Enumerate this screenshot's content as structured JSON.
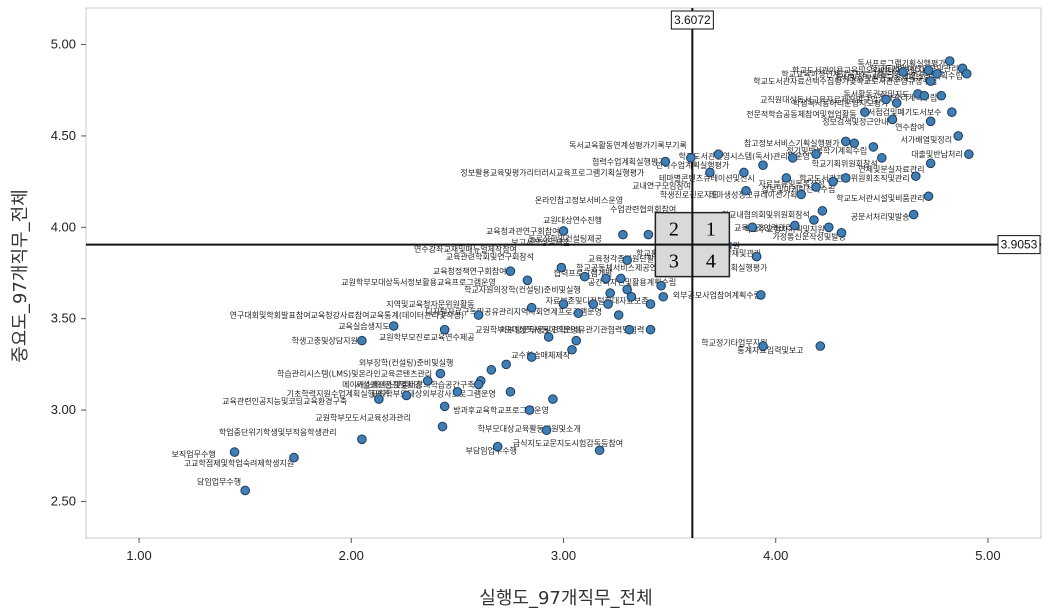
{
  "chart_data": {
    "type": "scatter",
    "title": "",
    "xlabel": "실행도_97개직무_전체",
    "ylabel": "중요도_97개직무_전체",
    "xlim": [
      0.75,
      5.25
    ],
    "ylim": [
      2.3,
      5.2
    ],
    "x_ticks": [
      "1.00",
      "2.00",
      "3.00",
      "4.00",
      "5.00"
    ],
    "x_tick_values": [
      1,
      2,
      3,
      4,
      5
    ],
    "y_ticks": [
      "2.50",
      "3.00",
      "3.50",
      "4.00",
      "4.50",
      "5.00"
    ],
    "y_tick_values": [
      2.5,
      3,
      3.5,
      4,
      4.5,
      5
    ],
    "grid": false,
    "point_color": "#3f7fb5",
    "reference_lines": {
      "x": 3.6072,
      "x_label": "3.6072",
      "y": 3.9053,
      "y_label": "3.9053"
    },
    "quadrants": [
      "1",
      "2",
      "3",
      "4"
    ],
    "points": [
      {
        "x": 4.82,
        "y": 4.9,
        "label": "독서프로그램기획실행평가"
      },
      {
        "x": 4.88,
        "y": 4.87,
        "label": "학교도서관예산요구및관리"
      },
      {
        "x": 4.9,
        "y": 4.83,
        "label": "연간운영계획수립"
      },
      {
        "x": 4.72,
        "y": 4.86,
        "label": "학교도서관이용교육및오리엔테이션실시"
      },
      {
        "x": 4.75,
        "y": 4.82,
        "label": "독서및정보활용교육계획수립"
      },
      {
        "x": 4.6,
        "y": 4.84,
        "label": "학교교육과정연계교육프로그램운영"
      },
      {
        "x": 4.78,
        "y": 4.8,
        "label": "학교도서관자료선택수집평가및학교도서관운영규정수립"
      },
      {
        "x": 4.65,
        "y": 4.73,
        "label": "독서활동권장및지도"
      },
      {
        "x": 4.78,
        "y": 4.71,
        "label": "장서관리계획수립"
      },
      {
        "x": 4.5,
        "y": 4.7,
        "label": "교직원대상독서교육자료제작및구입"
      },
      {
        "x": 4.55,
        "y": 4.68,
        "label": "학생독서동아리운영지도평가"
      },
      {
        "x": 4.8,
        "y": 4.63,
        "label": "장서점검및폐기도서보수"
      },
      {
        "x": 4.4,
        "y": 4.62,
        "label": "전문적학습공동체참여및협업활동"
      },
      {
        "x": 4.55,
        "y": 4.58,
        "label": "정보검색및정근안내"
      },
      {
        "x": 4.72,
        "y": 4.55,
        "label": "연수참여"
      },
      {
        "x": 4.85,
        "y": 4.48,
        "label": "서가배열및정리"
      },
      {
        "x": 3.6,
        "y": 4.45,
        "label": "독서교육활동연계성평가기록부기록"
      },
      {
        "x": 4.32,
        "y": 4.46,
        "label": "참고정보서비스기획실행평가"
      },
      {
        "x": 4.45,
        "y": 4.42,
        "label": "정기및반복학기계획수립"
      },
      {
        "x": 4.9,
        "y": 4.4,
        "label": "대출및반납처리"
      },
      {
        "x": 4.18,
        "y": 4.39,
        "label": "학교도서관운영시스템(독서)관리및운영"
      },
      {
        "x": 3.5,
        "y": 4.36,
        "label": "협력수업계획실행평가"
      },
      {
        "x": 3.8,
        "y": 4.34,
        "label": "단독수업계획실행평가"
      },
      {
        "x": 4.5,
        "y": 4.35,
        "label": "학교기획위원회참석"
      },
      {
        "x": 4.72,
        "y": 4.32,
        "label": "연체및분실자료관리"
      },
      {
        "x": 3.4,
        "y": 4.3,
        "label": "정보활용교육및평가리터러시교육프로그램기획실행평가"
      },
      {
        "x": 3.92,
        "y": 4.27,
        "label": "테마별콘텐츠큐레이션및전시"
      },
      {
        "x": 4.65,
        "y": 4.27,
        "label": "학교도서관관련위원회조직및관리"
      },
      {
        "x": 4.25,
        "y": 4.24,
        "label": "자료분류및목록작성"
      },
      {
        "x": 3.62,
        "y": 4.23,
        "label": "교내연구모임참여"
      },
      {
        "x": 4.3,
        "y": 4.21,
        "label": "정보및마케팅전략수립"
      },
      {
        "x": 3.75,
        "y": 4.18,
        "label": "학생진로진로지도"
      },
      {
        "x": 4.12,
        "y": 4.18,
        "label": "테마생성정보큐레이션기획"
      },
      {
        "x": 4.72,
        "y": 4.16,
        "label": "학교도서관시설및비품관리"
      },
      {
        "x": 3.3,
        "y": 4.15,
        "label": "온라인참고정보서비스운영"
      },
      {
        "x": 3.55,
        "y": 4.1,
        "label": "수업관련협의회참여"
      },
      {
        "x": 4.18,
        "y": 4.07,
        "label": "학교내협의회및위원회참석"
      },
      {
        "x": 4.65,
        "y": 4.06,
        "label": "공문서처리및발송"
      },
      {
        "x": 3.2,
        "y": 4.04,
        "label": "교원대상연수진행"
      },
      {
        "x": 3.72,
        "y": 4.01,
        "label": "시청각자료관리"
      },
      {
        "x": 4.1,
        "y": 4.0,
        "label": "교육보조인력관리"
      },
      {
        "x": 4.25,
        "y": 3.99,
        "label": "학교주요행사기획및지원"
      },
      {
        "x": 3.0,
        "y": 3.98,
        "label": "교육청과관연구회참여"
      },
      {
        "x": 3.68,
        "y": 3.96,
        "label": "자료이용교육"
      },
      {
        "x": 4.35,
        "y": 3.95,
        "label": "가정통신문작성및발송"
      },
      {
        "x": 3.2,
        "y": 3.94,
        "label": "동료장학및컨설팅제공"
      },
      {
        "x": 3.05,
        "y": 3.92,
        "label": "보고서작성및제출"
      },
      {
        "x": 3.85,
        "y": 3.9,
        "label": "창의적체험활동지원"
      },
      {
        "x": 2.8,
        "y": 3.88,
        "label": "연수강좌교재및매뉴얼제작참여"
      },
      {
        "x": 3.95,
        "y": 3.86,
        "label": "학교홈페이지독서교육내용탑재및관리"
      },
      {
        "x": 2.88,
        "y": 3.84,
        "label": "교육관련학회및연구회참석"
      },
      {
        "x": 3.55,
        "y": 3.83,
        "label": "교육청각종지원단활동참여"
      },
      {
        "x": 3.98,
        "y": 3.78,
        "label": "학교공동체서비스제공연구학교및교육과사업계획실행평가"
      },
      {
        "x": 2.75,
        "y": 3.76,
        "label": "교육청정책연구회참여"
      },
      {
        "x": 3.25,
        "y": 3.75,
        "label": "협력프로그램개발"
      },
      {
        "x": 3.55,
        "y": 3.7,
        "label": "공간디자인및활용계획수립"
      },
      {
        "x": 2.7,
        "y": 3.7,
        "label": "교원학부모대상독서정보활용교육프로그램운영"
      },
      {
        "x": 3.1,
        "y": 3.66,
        "label": "학교자원의장학(컨설팅)준비및실행"
      },
      {
        "x": 3.95,
        "y": 3.63,
        "label": "외부공모사업참여계획수립"
      },
      {
        "x": 3.42,
        "y": 3.6,
        "label": "자료보존및디지털화대자료보존"
      },
      {
        "x": 2.6,
        "y": 3.58,
        "label": "지역및교육청자문위원활동"
      },
      {
        "x": 3.2,
        "y": 3.54,
        "label": "디지털자료구독및공유관리지역사회연계프로그램운영"
      },
      {
        "x": 2.55,
        "y": 3.52,
        "label": "연구대회및학회발표참여교육청강사료참여교육통계(데이터관리및작성)"
      },
      {
        "x": 2.2,
        "y": 3.46,
        "label": "교육실습생지도"
      },
      {
        "x": 3.1,
        "y": 3.44,
        "label": "외부방문대응및견학안내"
      },
      {
        "x": 3.4,
        "y": 3.44,
        "label": "교원학부모대상독서동아리운영유관기관협력및협력"
      },
      {
        "x": 2.6,
        "y": 3.4,
        "label": "교원학부모진로교육연수제공"
      },
      {
        "x": 2.05,
        "y": 3.38,
        "label": "학생고충및상담지원"
      },
      {
        "x": 3.98,
        "y": 3.37,
        "label": "학교정기타업무지원"
      },
      {
        "x": 4.15,
        "y": 3.33,
        "label": "통계자료입력및보고"
      },
      {
        "x": 3.05,
        "y": 3.3,
        "label": "교수학습매체제작"
      },
      {
        "x": 2.5,
        "y": 3.26,
        "label": "외부장학(컨설팅)준비및실행"
      },
      {
        "x": 2.4,
        "y": 3.2,
        "label": "학습관리시스템(LMS)및온라인교육콘텐츠관리"
      },
      {
        "x": 2.35,
        "y": 3.14,
        "label": "시설안전점검및환경"
      },
      {
        "x": 2.6,
        "y": 3.14,
        "label": "메이커스페이스및멀티창의학습공간구축"
      },
      {
        "x": 2.2,
        "y": 3.09,
        "label": "기초학력지원수업계획실행평가"
      },
      {
        "x": 2.7,
        "y": 3.09,
        "label": "교원학부모대상외부강사프로그램운영"
      },
      {
        "x": 2.0,
        "y": 3.05,
        "label": "교육관련인공지능및코딩교육환경구축"
      },
      {
        "x": 2.95,
        "y": 3.0,
        "label": "방과후교육학교프로그램운영"
      },
      {
        "x": 2.3,
        "y": 2.96,
        "label": "교원학부모도서교육성과관리"
      },
      {
        "x": 3.1,
        "y": 2.9,
        "label": "학부모대상교육활동지원및소개"
      },
      {
        "x": 1.95,
        "y": 2.88,
        "label": "학업중단위기학생및부적응학생관리"
      },
      {
        "x": 3.3,
        "y": 2.82,
        "label": "급식지도교문지도시험감독등참여"
      },
      {
        "x": 2.8,
        "y": 2.78,
        "label": "부담임업무수행"
      },
      {
        "x": 1.38,
        "y": 2.76,
        "label": "보직업무수행"
      },
      {
        "x": 1.75,
        "y": 2.71,
        "label": "고교학점제및학업숙려제학생지원"
      },
      {
        "x": 1.5,
        "y": 2.61,
        "label": "담임업무수행"
      }
    ],
    "drawn_points": [
      [
        4.82,
        4.91
      ],
      [
        4.88,
        4.87
      ],
      [
        4.9,
        4.84
      ],
      [
        4.72,
        4.86
      ],
      [
        4.76,
        4.84
      ],
      [
        4.6,
        4.85
      ],
      [
        4.73,
        4.8
      ],
      [
        4.67,
        4.73
      ],
      [
        4.78,
        4.72
      ],
      [
        4.7,
        4.72
      ],
      [
        4.52,
        4.7
      ],
      [
        4.57,
        4.68
      ],
      [
        4.83,
        4.63
      ],
      [
        4.42,
        4.63
      ],
      [
        4.55,
        4.59
      ],
      [
        4.73,
        4.58
      ],
      [
        4.86,
        4.5
      ],
      [
        4.33,
        4.47
      ],
      [
        4.46,
        4.44
      ],
      [
        4.91,
        4.4
      ],
      [
        4.19,
        4.4
      ],
      [
        4.37,
        4.46
      ],
      [
        4.5,
        4.38
      ],
      [
        4.73,
        4.35
      ],
      [
        4.05,
        4.27
      ],
      [
        4.33,
        4.27
      ],
      [
        4.66,
        4.28
      ],
      [
        4.27,
        4.25
      ],
      [
        3.85,
        4.3
      ],
      [
        3.94,
        4.34
      ],
      [
        4.19,
        4.22
      ],
      [
        3.86,
        4.2
      ],
      [
        4.12,
        4.18
      ],
      [
        4.72,
        4.17
      ],
      [
        3.69,
        4.3
      ],
      [
        3.48,
        4.36
      ],
      [
        3.6,
        4.38
      ],
      [
        3.73,
        4.4
      ],
      [
        4.08,
        4.38
      ],
      [
        4.22,
        4.09
      ],
      [
        4.65,
        4.07
      ],
      [
        4.18,
        4.04
      ],
      [
        4.25,
        4.0
      ],
      [
        4.09,
        4.01
      ],
      [
        3.89,
        4.0
      ],
      [
        4.31,
        3.97
      ],
      [
        3.28,
        3.96
      ],
      [
        3.0,
        3.98
      ],
      [
        3.4,
        3.96
      ],
      [
        3.6,
        3.85
      ],
      [
        3.77,
        3.9
      ],
      [
        3.3,
        3.82
      ],
      [
        3.91,
        3.84
      ],
      [
        2.99,
        3.78
      ],
      [
        2.75,
        3.76
      ],
      [
        3.1,
        3.73
      ],
      [
        3.2,
        3.72
      ],
      [
        3.27,
        3.72
      ],
      [
        2.83,
        3.71
      ],
      [
        3.46,
        3.68
      ],
      [
        3.3,
        3.66
      ],
      [
        3.22,
        3.64
      ],
      [
        3.32,
        3.62
      ],
      [
        3.47,
        3.62
      ],
      [
        3.41,
        3.58
      ],
      [
        3.21,
        3.58
      ],
      [
        3.0,
        3.58
      ],
      [
        3.14,
        3.58
      ],
      [
        3.93,
        3.63
      ],
      [
        2.85,
        3.56
      ],
      [
        3.26,
        3.52
      ],
      [
        3.07,
        3.53
      ],
      [
        2.6,
        3.52
      ],
      [
        2.2,
        3.46
      ],
      [
        2.44,
        3.44
      ],
      [
        3.31,
        3.44
      ],
      [
        3.41,
        3.44
      ],
      [
        2.93,
        3.4
      ],
      [
        3.06,
        3.38
      ],
      [
        2.05,
        3.38
      ],
      [
        3.94,
        3.35
      ],
      [
        4.21,
        3.35
      ],
      [
        3.04,
        3.33
      ],
      [
        2.85,
        3.29
      ],
      [
        2.73,
        3.25
      ],
      [
        2.42,
        3.2
      ],
      [
        2.66,
        3.22
      ],
      [
        2.61,
        3.16
      ],
      [
        2.36,
        3.16
      ],
      [
        2.6,
        3.14
      ],
      [
        2.5,
        3.1
      ],
      [
        2.75,
        3.1
      ],
      [
        2.26,
        3.08
      ],
      [
        2.95,
        3.06
      ],
      [
        2.13,
        3.06
      ],
      [
        2.44,
        3.02
      ],
      [
        2.84,
        3.0
      ],
      [
        2.43,
        2.91
      ],
      [
        2.92,
        2.89
      ],
      [
        2.05,
        2.84
      ],
      [
        3.17,
        2.78
      ],
      [
        2.69,
        2.8
      ],
      [
        1.45,
        2.77
      ],
      [
        1.73,
        2.74
      ],
      [
        1.5,
        2.56
      ]
    ]
  }
}
